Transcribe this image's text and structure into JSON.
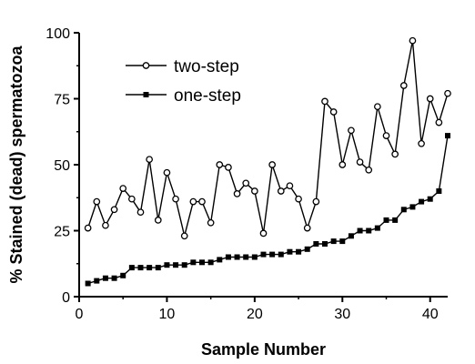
{
  "chart_data": {
    "type": "line",
    "title": "",
    "xlabel": "Sample Number",
    "ylabel": "% Stained (dead) spermatozoa",
    "xlim": [
      0,
      42
    ],
    "ylim": [
      0,
      100
    ],
    "xticks": [
      0,
      10,
      20,
      30,
      40
    ],
    "yticks": [
      0,
      25,
      50,
      75,
      100
    ],
    "grid": false,
    "legend_position": "top-left",
    "x": [
      1,
      2,
      3,
      4,
      5,
      6,
      7,
      8,
      9,
      10,
      11,
      12,
      13,
      14,
      15,
      16,
      17,
      18,
      19,
      20,
      21,
      22,
      23,
      24,
      25,
      26,
      27,
      28,
      29,
      30,
      31,
      32,
      33,
      34,
      35,
      36,
      37,
      38,
      39,
      40,
      41,
      42
    ],
    "series": [
      {
        "name": "two-step",
        "marker": "open-circle",
        "color": "#000000",
        "values": [
          26,
          36,
          27,
          33,
          41,
          37,
          32,
          52,
          29,
          47,
          37,
          23,
          36,
          36,
          28,
          50,
          49,
          39,
          43,
          40,
          24,
          50,
          40,
          42,
          37,
          26,
          36,
          74,
          70,
          50,
          63,
          51,
          48,
          72,
          61,
          54,
          80,
          97,
          58,
          75,
          66,
          77
        ]
      },
      {
        "name": "one-step",
        "marker": "filled-square",
        "color": "#000000",
        "values": [
          5,
          6,
          7,
          7,
          8,
          11,
          11,
          11,
          11,
          12,
          12,
          12,
          13,
          13,
          13,
          14,
          15,
          15,
          15,
          15,
          16,
          16,
          16,
          17,
          17,
          18,
          20,
          20,
          21,
          21,
          23,
          25,
          25,
          26,
          29,
          29,
          33,
          34,
          36,
          37,
          40,
          61
        ]
      }
    ]
  }
}
